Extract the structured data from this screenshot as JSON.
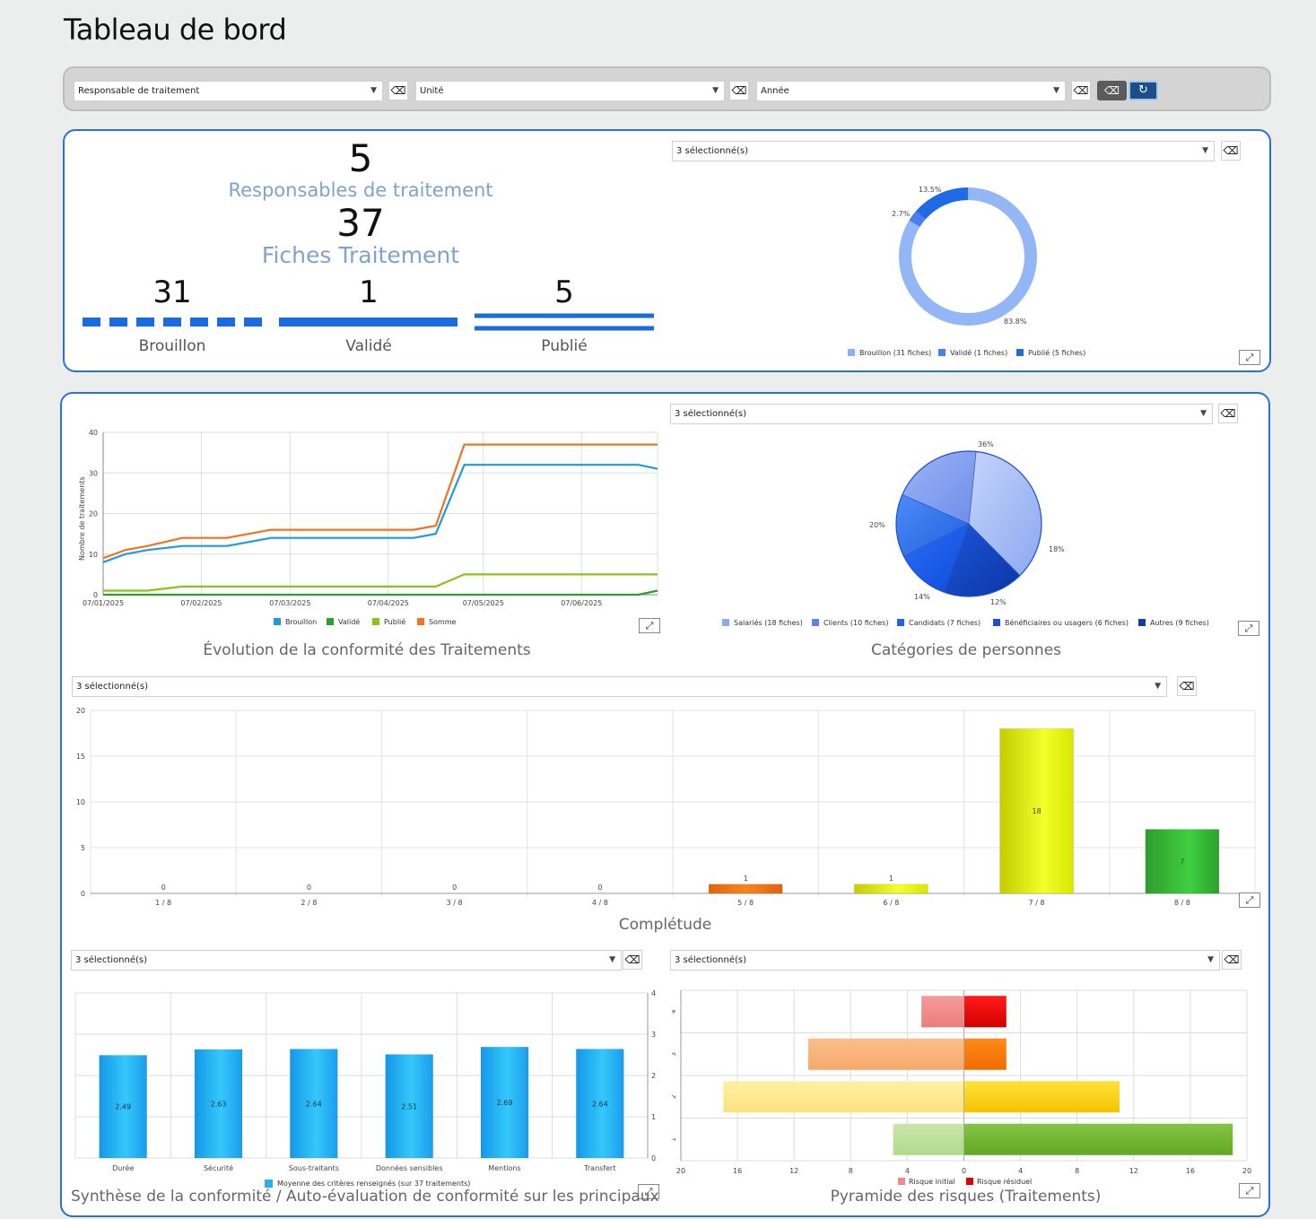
{
  "page_title": "Tableau de bord",
  "filters": {
    "responsable": "Responsable de traitement",
    "unite": "Unité",
    "annee": "Année",
    "eraser_icon": "⌫",
    "clear_icon": "⌫",
    "refresh_icon": "↻"
  },
  "summary": {
    "responsables_count": "5",
    "responsables_label": "Responsables de traitement",
    "fiches_count": "37",
    "fiches_label": "Fiches Traitement",
    "brouillon_count": "31",
    "brouillon_label": "Brouillon",
    "valide_count": "1",
    "valide_label": "Validé",
    "publie_count": "5",
    "publie_label": "Publié"
  },
  "selects": {
    "selected_text": "3 sélectionné(s)"
  },
  "donut": {
    "labels": [
      "83.8%",
      "2.7%",
      "13.5%"
    ],
    "legend": [
      "Brouillon (31 fiches)",
      "Validé (1 fiches)",
      "Publié (5 fiches)"
    ],
    "colors": [
      "#8ab0f5",
      "#4d7ef0",
      "#1f6ae6"
    ]
  },
  "line_chart": {
    "title": "Évolution de la conformité des Traitements",
    "ylabel": "Nombre de traitements",
    "y_ticks": [
      "0",
      "10",
      "20",
      "30",
      "40"
    ],
    "x_ticks": [
      "07/01/2025",
      "07/02/2025",
      "07/03/2025",
      "07/04/2025",
      "07/05/2025",
      "07/06/2025"
    ],
    "legend": [
      "Brouillon",
      "Validé",
      "Publié",
      "Somme"
    ],
    "colors": [
      "#1e9be0",
      "#2ca02c",
      "#8cc21d",
      "#f0741e"
    ]
  },
  "pie_chart": {
    "title": "Catégories de personnes",
    "labels": [
      "36%",
      "18%",
      "12%",
      "14%",
      "20%"
    ],
    "legend": [
      "Salariés (18 fiches)",
      "Clients (10 fiches)",
      "Candidats (7 fiches)",
      "Bénéficiaires ou usagers (6 fiches)",
      "Autres (9 fiches)"
    ],
    "colors": [
      "#8fa9f0",
      "#5a84ee",
      "#1e63e8",
      "#1d4fd0",
      "#123f9e"
    ]
  },
  "completude": {
    "title": "Complétude",
    "y_ticks": [
      "0",
      "5",
      "10",
      "15",
      "20"
    ],
    "categories": [
      "1 / 8",
      "2 / 8",
      "3 / 8",
      "4 / 8",
      "5 / 8",
      "6 / 8",
      "7 / 8",
      "8 / 8"
    ],
    "value_labels": [
      "0",
      "0",
      "0",
      "0",
      "1",
      "1",
      "18",
      "7"
    ]
  },
  "synthese": {
    "title": "Synthèse de la conformité / Auto-évaluation de conformité sur les principaux critères",
    "categories": [
      "Durée",
      "Sécurité",
      "Sous-traitants",
      "Données sensibles",
      "Mentions",
      "Transfert"
    ],
    "value_labels": [
      "2.49",
      "2.63",
      "2.64",
      "2.51",
      "2.69",
      "2.64"
    ],
    "y_ticks": [
      "0",
      "1",
      "2",
      "3",
      "4"
    ],
    "legend": "Moyenne des critères renseignés (sur 37 traitements)"
  },
  "pyramide": {
    "title": "Pyramide des risques (Traitements)",
    "x_ticks": [
      "20",
      "16",
      "12",
      "8",
      "4",
      "0",
      "4",
      "8",
      "12",
      "16",
      "20"
    ],
    "y_ticks": [
      "1",
      "2",
      "3",
      "4"
    ],
    "legend": [
      "Risque initial",
      "Risque résiduel"
    ]
  },
  "chart_data": [
    {
      "type": "pie",
      "categories": [
        "Brouillon (31 fiches)",
        "Validé (1 fiches)",
        "Publié (5 fiches)"
      ],
      "values": [
        83.8,
        2.7,
        13.5
      ]
    },
    {
      "type": "line",
      "title": "Évolution de la conformité des Traitements",
      "ylabel": "Nombre de traitements",
      "ylim": [
        0,
        40
      ],
      "x": [
        "2025-01-07",
        "2025-01-14",
        "2025-01-21",
        "2025-02-01",
        "2025-02-15",
        "2025-03-01",
        "2025-03-15",
        "2025-04-01",
        "2025-04-15",
        "2025-04-22",
        "2025-05-01",
        "2025-06-15",
        "2025-06-25",
        "2025-07-01"
      ],
      "series": [
        {
          "name": "Brouillon",
          "values": [
            8,
            10,
            11,
            12,
            12,
            14,
            14,
            14,
            14,
            15,
            32,
            32,
            32,
            31
          ]
        },
        {
          "name": "Validé",
          "values": [
            0,
            0,
            0,
            0,
            0,
            0,
            0,
            0,
            0,
            0,
            0,
            0,
            0,
            1
          ]
        },
        {
          "name": "Publié",
          "values": [
            1,
            1,
            1,
            2,
            2,
            2,
            2,
            2,
            2,
            2,
            5,
            5,
            5,
            5
          ]
        },
        {
          "name": "Somme",
          "values": [
            9,
            11,
            12,
            14,
            14,
            16,
            16,
            16,
            16,
            17,
            37,
            37,
            37,
            37
          ]
        }
      ]
    },
    {
      "type": "pie",
      "title": "Catégories de personnes",
      "categories": [
        "Salariés (18 fiches)",
        "Clients (10 fiches)",
        "Candidats (7 fiches)",
        "Bénéficiaires ou usagers (6 fiches)",
        "Autres (9 fiches)"
      ],
      "values": [
        36,
        20,
        14,
        12,
        18
      ]
    },
    {
      "type": "bar",
      "title": "Complétude",
      "categories": [
        "1 / 8",
        "2 / 8",
        "3 / 8",
        "4 / 8",
        "5 / 8",
        "6 / 8",
        "7 / 8",
        "8 / 8"
      ],
      "values": [
        0,
        0,
        0,
        0,
        1,
        1,
        18,
        7
      ],
      "ylim": [
        0,
        20
      ]
    },
    {
      "type": "bar",
      "title": "Synthèse de la conformité / Auto-évaluation de conformité sur les principaux critères",
      "categories": [
        "Durée",
        "Sécurité",
        "Sous-traitants",
        "Données sensibles",
        "Mentions",
        "Transfert"
      ],
      "series": [
        {
          "name": "Moyenne des critères renseignés (sur 37 traitements)",
          "values": [
            2.49,
            2.63,
            2.64,
            2.51,
            2.69,
            2.64
          ]
        }
      ],
      "ylim": [
        0,
        4
      ]
    },
    {
      "type": "bar",
      "title": "Pyramide des risques (Traitements)",
      "categories": [
        "1",
        "2",
        "3",
        "4"
      ],
      "series": [
        {
          "name": "Risque initial",
          "values": [
            5,
            17,
            11,
            3
          ]
        },
        {
          "name": "Risque résiduel",
          "values": [
            19,
            11,
            3,
            3
          ]
        }
      ],
      "xlim": [
        -20,
        20
      ]
    }
  ]
}
